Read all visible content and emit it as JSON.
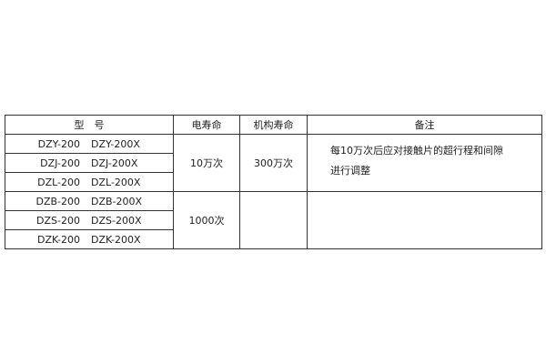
{
  "headers": {
    "model": "型　号",
    "electrical_life": "电寿命",
    "mechanical_life": "机构寿命",
    "remarks": "备注"
  },
  "rows": [
    {
      "model_a": "DZY-200",
      "model_b": "DZY-200X"
    },
    {
      "model_a": "DZJ-200",
      "model_b": "DZJ-200X"
    },
    {
      "model_a": "DZL-200",
      "model_b": "DZL-200X"
    },
    {
      "model_a": "DZB-200",
      "model_b": "DZB-200X"
    },
    {
      "model_a": "DZS-200",
      "model_b": "DZS-200X"
    },
    {
      "model_a": "DZK-200",
      "model_b": "DZK-200X"
    }
  ],
  "group1": {
    "electrical_life": "10万次",
    "mechanical_life": "300万次",
    "remarks_line1": "每10万次后应对接触片的超行程和间隙",
    "remarks_line2": "进行调整"
  },
  "group2": {
    "electrical_life": "1000次",
    "mechanical_life": "",
    "remarks": ""
  }
}
